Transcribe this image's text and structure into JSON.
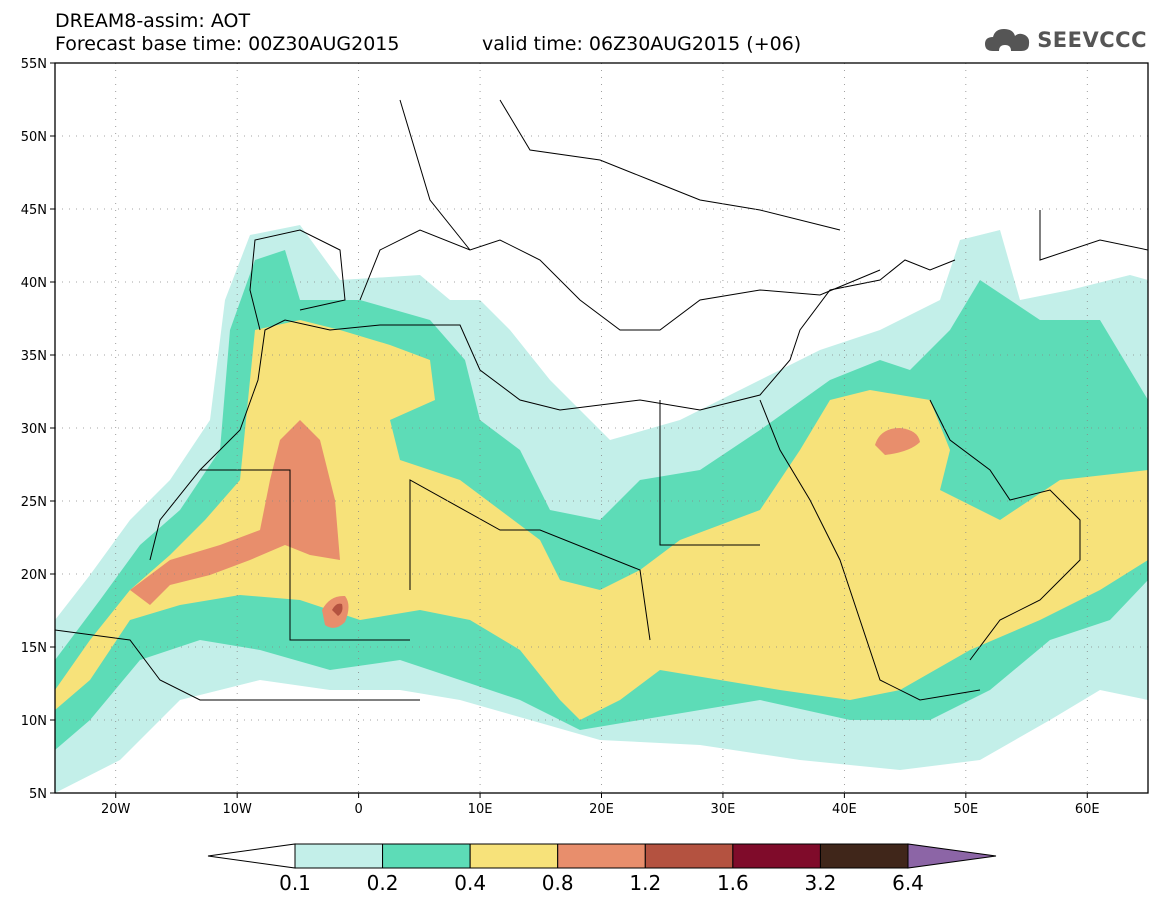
{
  "header": {
    "line1": "DREAM8-assim: AOT",
    "line2": "Forecast base time: 00Z30AUG2015",
    "valid": "valid time: 06Z30AUG2015 (+06)"
  },
  "logo": {
    "text": "SEEVCCC",
    "icon": "cloud-icon"
  },
  "map": {
    "lon_range": [
      -25,
      65
    ],
    "lat_range": [
      5,
      55
    ],
    "lat_ticks": [
      "55N",
      "50N",
      "45N",
      "40N",
      "35N",
      "30N",
      "25N",
      "20N",
      "15N",
      "10N",
      "5N"
    ],
    "lon_ticks": [
      "20W",
      "10W",
      "0",
      "10E",
      "20E",
      "30E",
      "40E",
      "50E",
      "60E"
    ],
    "grid": "dotted"
  },
  "colorbar": {
    "labels": [
      "0.1",
      "0.2",
      "0.4",
      "0.8",
      "1.2",
      "1.6",
      "3.2",
      "6.4"
    ],
    "colors": [
      "#ffffff",
      "#c3efe9",
      "#5ddcb7",
      "#f7e27a",
      "#e88e6c",
      "#b45240",
      "#7f0b2a",
      "#40261a",
      "#8c65a6"
    ]
  }
}
